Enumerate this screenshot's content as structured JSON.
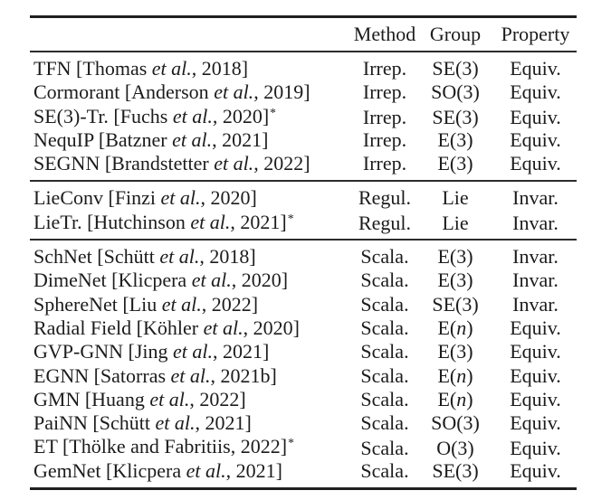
{
  "colors": {
    "background": "#ffffff",
    "text": "#1c1c1c",
    "rule": "#1f1f1f"
  },
  "table": {
    "header": {
      "method": "Method",
      "group": "Group",
      "property": "Property"
    },
    "star_symbol": "*",
    "sections": [
      {
        "rows": [
          {
            "label": [
              {
                "t": "TFN [Thomas "
              },
              {
                "t": "et al.",
                "i": true
              },
              {
                "t": ", 2018]"
              }
            ],
            "star": false,
            "method": "Irrep.",
            "group": [
              {
                "t": "SE(3)"
              }
            ],
            "property": "Equiv."
          },
          {
            "label": [
              {
                "t": "Cormorant [Anderson "
              },
              {
                "t": "et al.",
                "i": true
              },
              {
                "t": ", 2019]"
              }
            ],
            "star": false,
            "method": "Irrep.",
            "group": [
              {
                "t": "SO(3)"
              }
            ],
            "property": "Equiv."
          },
          {
            "label": [
              {
                "t": "SE(3)-Tr. [Fuchs "
              },
              {
                "t": "et al.",
                "i": true
              },
              {
                "t": ", 2020]"
              }
            ],
            "star": true,
            "method": "Irrep.",
            "group": [
              {
                "t": "SE(3)"
              }
            ],
            "property": "Equiv."
          },
          {
            "label": [
              {
                "t": "NequIP [Batzner "
              },
              {
                "t": "et al.",
                "i": true
              },
              {
                "t": ", 2021]"
              }
            ],
            "star": false,
            "method": "Irrep.",
            "group": [
              {
                "t": "E(3)"
              }
            ],
            "property": "Equiv."
          },
          {
            "label": [
              {
                "t": "SEGNN [Brandstetter "
              },
              {
                "t": "et al.",
                "i": true
              },
              {
                "t": ", 2022]"
              }
            ],
            "star": false,
            "method": "Irrep.",
            "group": [
              {
                "t": "E(3)"
              }
            ],
            "property": "Equiv."
          }
        ]
      },
      {
        "rows": [
          {
            "label": [
              {
                "t": "LieConv [Finzi "
              },
              {
                "t": "et al.",
                "i": true
              },
              {
                "t": ", 2020]"
              }
            ],
            "star": false,
            "method": "Regul.",
            "group": [
              {
                "t": "Lie"
              }
            ],
            "property": "Invar."
          },
          {
            "label": [
              {
                "t": "LieTr. [Hutchinson "
              },
              {
                "t": "et al.",
                "i": true
              },
              {
                "t": ", 2021]"
              }
            ],
            "star": true,
            "method": "Regul.",
            "group": [
              {
                "t": "Lie"
              }
            ],
            "property": "Invar."
          }
        ]
      },
      {
        "rows": [
          {
            "label": [
              {
                "t": "SchNet [Schütt "
              },
              {
                "t": "et al.",
                "i": true
              },
              {
                "t": ", 2018]"
              }
            ],
            "star": false,
            "method": "Scala.",
            "group": [
              {
                "t": "E(3)"
              }
            ],
            "property": "Invar."
          },
          {
            "label": [
              {
                "t": "DimeNet [Klicpera "
              },
              {
                "t": "et al.",
                "i": true
              },
              {
                "t": ", 2020]"
              }
            ],
            "star": false,
            "method": "Scala.",
            "group": [
              {
                "t": "E(3)"
              }
            ],
            "property": "Invar."
          },
          {
            "label": [
              {
                "t": "SphereNet [Liu "
              },
              {
                "t": "et al.",
                "i": true
              },
              {
                "t": ", 2022]"
              }
            ],
            "star": false,
            "method": "Scala.",
            "group": [
              {
                "t": "SE(3)"
              }
            ],
            "property": "Invar."
          },
          {
            "label": [
              {
                "t": "Radial Field [Köhler "
              },
              {
                "t": "et al.",
                "i": true
              },
              {
                "t": ", 2020]"
              }
            ],
            "star": false,
            "method": "Scala.",
            "group": [
              {
                "t": "E("
              },
              {
                "t": "n",
                "i": true
              },
              {
                "t": ")"
              }
            ],
            "property": "Equiv."
          },
          {
            "label": [
              {
                "t": "GVP-GNN [Jing "
              },
              {
                "t": "et al.",
                "i": true
              },
              {
                "t": ", 2021]"
              }
            ],
            "star": false,
            "method": "Scala.",
            "group": [
              {
                "t": "E(3)"
              }
            ],
            "property": "Equiv."
          },
          {
            "label": [
              {
                "t": "EGNN [Satorras "
              },
              {
                "t": "et al.",
                "i": true
              },
              {
                "t": ", 2021b]"
              }
            ],
            "star": false,
            "method": "Scala.",
            "group": [
              {
                "t": "E("
              },
              {
                "t": "n",
                "i": true
              },
              {
                "t": ")"
              }
            ],
            "property": "Equiv."
          },
          {
            "label": [
              {
                "t": "GMN [Huang "
              },
              {
                "t": "et al.",
                "i": true
              },
              {
                "t": ", 2022]"
              }
            ],
            "star": false,
            "method": "Scala.",
            "group": [
              {
                "t": "E("
              },
              {
                "t": "n",
                "i": true
              },
              {
                "t": ")"
              }
            ],
            "property": "Equiv."
          },
          {
            "label": [
              {
                "t": "PaiNN [Schütt "
              },
              {
                "t": "et al.",
                "i": true
              },
              {
                "t": ", 2021]"
              }
            ],
            "star": false,
            "method": "Scala.",
            "group": [
              {
                "t": "SO(3)"
              }
            ],
            "property": "Equiv."
          },
          {
            "label": [
              {
                "t": "ET [Thölke and Fabritiis, 2022]"
              }
            ],
            "star": true,
            "method": "Scala.",
            "group": [
              {
                "t": "O(3)"
              }
            ],
            "property": "Equiv."
          },
          {
            "label": [
              {
                "t": "GemNet [Klicpera "
              },
              {
                "t": "et al.",
                "i": true
              },
              {
                "t": ", 2021]"
              }
            ],
            "star": false,
            "method": "Scala.",
            "group": [
              {
                "t": "SE(3)"
              }
            ],
            "property": "Equiv."
          }
        ]
      }
    ]
  }
}
